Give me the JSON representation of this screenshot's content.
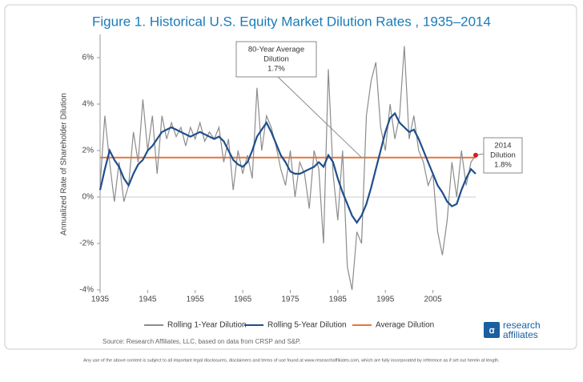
{
  "chart_data": {
    "type": "line",
    "title": "Figure 1.  Historical U.S. Equity Market Dilution Rates , 1935–2014",
    "y_label": "Annualized Rate of Shareholder Dilution",
    "x": [
      1935,
      1936,
      1937,
      1938,
      1939,
      1940,
      1941,
      1942,
      1943,
      1944,
      1945,
      1946,
      1947,
      1948,
      1949,
      1950,
      1951,
      1952,
      1953,
      1954,
      1955,
      1956,
      1957,
      1958,
      1959,
      1960,
      1961,
      1962,
      1963,
      1964,
      1965,
      1966,
      1967,
      1968,
      1969,
      1970,
      1971,
      1972,
      1973,
      1974,
      1975,
      1976,
      1977,
      1978,
      1979,
      1980,
      1981,
      1982,
      1983,
      1984,
      1985,
      1986,
      1987,
      1988,
      1989,
      1990,
      1991,
      1992,
      1993,
      1994,
      1995,
      1996,
      1997,
      1998,
      1999,
      2000,
      2001,
      2002,
      2003,
      2004,
      2005,
      2006,
      2007,
      2008,
      2009,
      2010,
      2011,
      2012,
      2013,
      2014
    ],
    "series": [
      {
        "name": "Rolling 1-Year Dilution",
        "color": "#8c8c8c",
        "values": [
          0.5,
          3.5,
          1.5,
          -0.2,
          1.5,
          -0.2,
          0.5,
          2.8,
          1.5,
          4.2,
          2.0,
          3.5,
          1.0,
          3.5,
          2.5,
          3.2,
          2.6,
          3.0,
          2.2,
          3.0,
          2.5,
          3.2,
          2.4,
          2.8,
          2.5,
          3.0,
          1.5,
          2.5,
          0.3,
          2.0,
          1.0,
          1.8,
          0.8,
          4.7,
          2.0,
          3.5,
          3.0,
          2.2,
          1.2,
          0.5,
          2.0,
          0.0,
          1.5,
          1.0,
          -0.5,
          2.0,
          1.2,
          -2.0,
          5.5,
          1.0,
          -1.0,
          2.0,
          -3.0,
          -4.0,
          -1.5,
          -2.0,
          3.5,
          5.0,
          5.8,
          3.0,
          2.0,
          4.0,
          2.5,
          3.5,
          6.5,
          2.5,
          3.5,
          2.0,
          1.5,
          0.5,
          1.0,
          -1.5,
          -2.5,
          -1.0,
          1.5,
          0.0,
          2.0,
          0.5,
          1.5,
          1.8
        ]
      },
      {
        "name": "Rolling 5-Year Dilution",
        "color": "#1f4e8c",
        "values": [
          0.3,
          1.2,
          2.0,
          1.6,
          1.3,
          0.8,
          0.5,
          1.0,
          1.4,
          1.6,
          2.0,
          2.2,
          2.5,
          2.8,
          2.9,
          3.0,
          2.9,
          2.8,
          2.7,
          2.6,
          2.7,
          2.8,
          2.7,
          2.6,
          2.5,
          2.6,
          2.4,
          2.0,
          1.6,
          1.4,
          1.3,
          1.5,
          2.0,
          2.6,
          2.9,
          3.2,
          2.8,
          2.3,
          1.8,
          1.5,
          1.1,
          1.0,
          1.0,
          1.1,
          1.2,
          1.3,
          1.5,
          1.3,
          1.8,
          1.5,
          0.8,
          0.2,
          -0.3,
          -0.8,
          -1.1,
          -0.8,
          -0.3,
          0.4,
          1.2,
          2.0,
          2.8,
          3.4,
          3.6,
          3.2,
          3.0,
          2.8,
          2.9,
          2.5,
          2.0,
          1.5,
          1.0,
          0.5,
          0.2,
          -0.2,
          -0.4,
          -0.3,
          0.3,
          0.8,
          1.2,
          1.0
        ]
      }
    ],
    "average_line": {
      "name": "Average Dilution",
      "value": 1.7,
      "color": "#e8743b"
    },
    "xlim": [
      1935,
      2014
    ],
    "xticks": [
      1935,
      1945,
      1955,
      1965,
      1975,
      1985,
      1995,
      2005
    ],
    "ylim": [
      -4,
      7
    ],
    "yticks": [
      {
        "value": -4,
        "label": "-4%"
      },
      {
        "value": -2,
        "label": "-2%"
      },
      {
        "value": 0,
        "label": "0%"
      },
      {
        "value": 2,
        "label": "2%"
      },
      {
        "value": 4,
        "label": "4%"
      },
      {
        "value": 6,
        "label": "6%"
      }
    ],
    "annotations": [
      {
        "lines": [
          "80-Year Average",
          "Dilution",
          "1.7%"
        ],
        "target": {
          "x": 1990,
          "y": 1.7
        }
      },
      {
        "lines": [
          "2014",
          "Dilution",
          "1.8%"
        ],
        "target": {
          "x": 2014,
          "y": 1.8
        }
      }
    ],
    "source": "Source: Research Affiliates, LLC, based on data from CRSP and S&P.",
    "logo": [
      "research",
      "affiliates"
    ],
    "disclaimer": "Any use of the above content is subject to all important legal disclosures, disclaimers and terms of use found at www.researchaffiliates.com, which are fully incorporated by reference as if set out herein at length."
  }
}
